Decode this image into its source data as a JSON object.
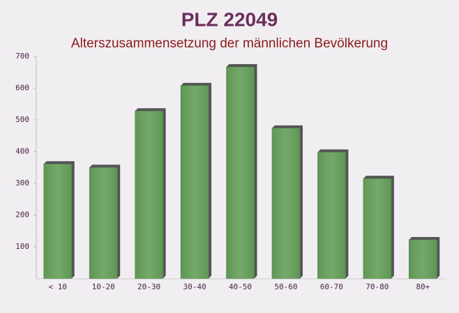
{
  "chart_data": {
    "type": "bar",
    "title": "PLZ 22049",
    "subtitle": "Alterszusammensetzung der männlichen Bevölkerung",
    "categories": [
      "< 10",
      "10-20",
      "20-30",
      "30-40",
      "40-50",
      "50-60",
      "60-70",
      "70-80",
      "80+"
    ],
    "values": [
      361,
      350,
      528,
      608,
      667,
      474,
      398,
      315,
      122
    ],
    "color": "#6a9f5f",
    "ylim": [
      0,
      700
    ],
    "yticks": [
      100,
      200,
      300,
      400,
      500,
      600,
      700
    ],
    "grid": false
  }
}
